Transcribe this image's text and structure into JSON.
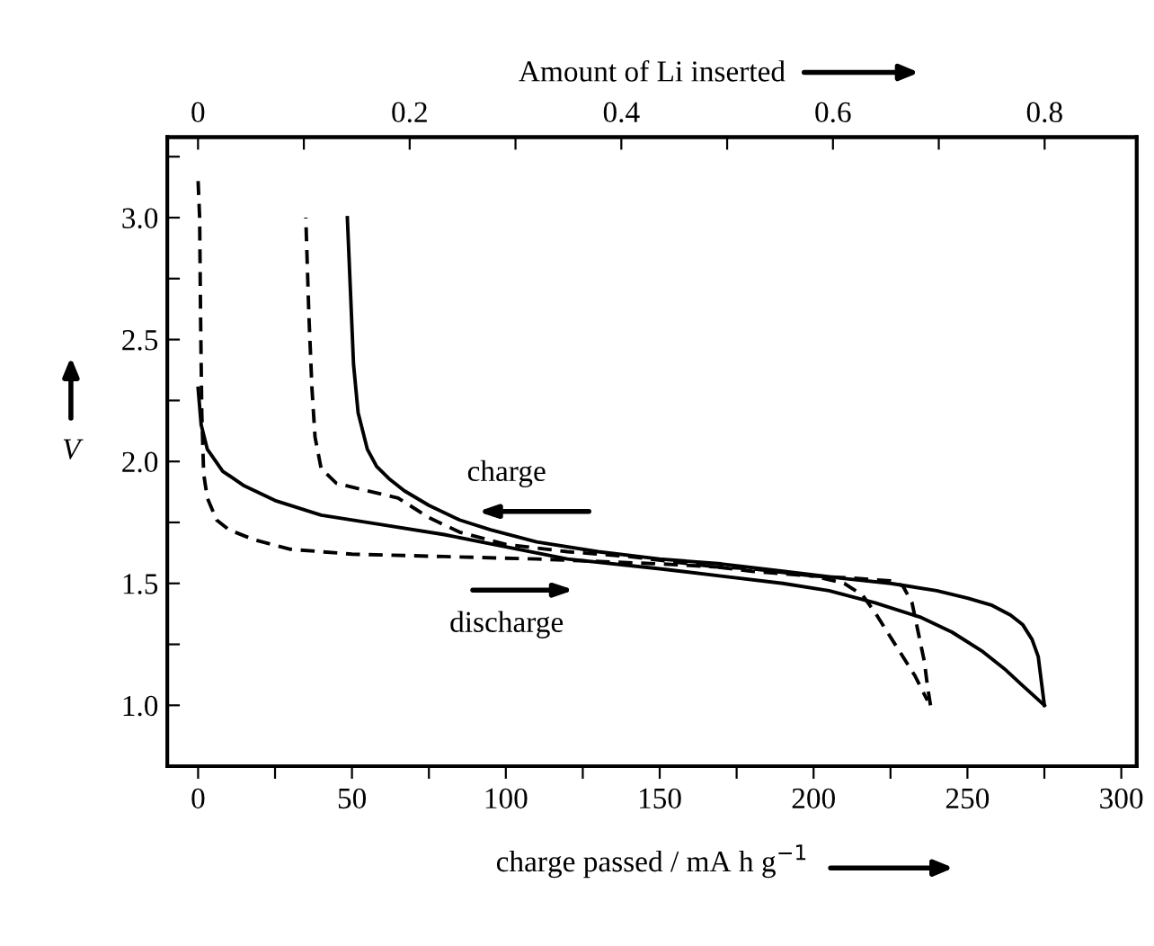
{
  "chart_data": {
    "type": "line",
    "xlabel": "charge passed / mA h g$^{−1}$",
    "ylabel": "V",
    "x2label": "Amount of Li inserted",
    "xlim": [
      -10,
      305
    ],
    "ylim": [
      0.75,
      3.33
    ],
    "x2lim": [
      -0.029,
      0.887
    ],
    "xticks": [
      0,
      {
        "value": 25,
        "label": null
      },
      50,
      {
        "value": 75,
        "label": null
      },
      100,
      {
        "value": 125,
        "label": null
      },
      150,
      {
        "value": 175,
        "label": null
      },
      200,
      {
        "value": 225,
        "label": null
      },
      250,
      {
        "value": 275,
        "label": null
      },
      300
    ],
    "yticks": [
      {
        "value": 0.75,
        "label": null
      },
      {
        "value": 1.0,
        "label": "1.0"
      },
      {
        "value": 1.25,
        "label": null
      },
      1.5,
      {
        "value": 1.75,
        "label": null
      },
      {
        "value": 2.0,
        "label": "2.0"
      },
      {
        "value": 2.25,
        "label": null
      },
      2.5,
      {
        "value": 2.75,
        "label": null
      },
      {
        "value": 3.0,
        "label": "3.0"
      },
      {
        "value": 3.25,
        "label": null
      }
    ],
    "x2ticks": [
      0,
      {
        "value": 0.1,
        "label": null
      },
      0.2,
      {
        "value": 0.3,
        "label": null
      },
      0.4,
      {
        "value": 0.5,
        "label": null
      },
      0.6,
      {
        "value": 0.7,
        "label": null
      },
      0.8
    ],
    "grid": false,
    "legend": false,
    "marker": "none",
    "annotations": [
      "charge",
      "discharge"
    ],
    "series": [
      {
        "color": "#000000",
        "line_style": "solid",
        "x": [
          0,
          1,
          3,
          8,
          15,
          25,
          40,
          60,
          80,
          100,
          120,
          150,
          170,
          190,
          205,
          220,
          235,
          245,
          255,
          262,
          268,
          275
        ],
        "values": [
          2.3,
          2.15,
          2.05,
          1.96,
          1.9,
          1.84,
          1.78,
          1.74,
          1.7,
          1.65,
          1.6,
          1.56,
          1.53,
          1.5,
          1.47,
          1.42,
          1.36,
          1.3,
          1.22,
          1.15,
          1.08,
          1.0
        ]
      },
      {
        "color": "#000000",
        "line_style": "solid",
        "x": [
          275,
          274,
          273,
          271,
          268,
          264,
          258,
          250,
          240,
          225,
          210,
          190,
          170,
          150,
          130,
          110,
          95,
          85,
          75,
          67,
          62,
          58,
          55,
          52,
          50.5,
          49.5,
          48.5
        ],
        "values": [
          1.0,
          1.1,
          1.2,
          1.27,
          1.33,
          1.37,
          1.41,
          1.44,
          1.47,
          1.5,
          1.52,
          1.55,
          1.58,
          1.6,
          1.63,
          1.67,
          1.72,
          1.76,
          1.82,
          1.88,
          1.93,
          1.98,
          2.05,
          2.2,
          2.4,
          2.7,
          3.0
        ]
      },
      {
        "color": "#000000",
        "line_style": "dashed",
        "x": [
          0,
          0.5,
          0.8,
          1.2,
          1.8,
          3,
          6,
          10,
          18,
          30,
          50,
          80,
          110,
          150,
          180,
          200,
          210,
          216,
          220,
          224,
          228,
          233,
          237
        ],
        "values": [
          3.15,
          3.0,
          2.6,
          2.2,
          1.95,
          1.85,
          1.76,
          1.72,
          1.68,
          1.64,
          1.62,
          1.61,
          1.6,
          1.58,
          1.56,
          1.53,
          1.5,
          1.45,
          1.38,
          1.3,
          1.22,
          1.12,
          1.02
        ]
      },
      {
        "color": "#000000",
        "line_style": "dashed",
        "x": [
          238,
          237,
          236,
          234,
          232,
          229,
          225,
          215,
          200,
          180,
          160,
          140,
          120,
          100,
          85,
          75,
          65,
          55,
          45,
          40,
          38,
          37,
          36,
          35
        ],
        "values": [
          1.0,
          1.08,
          1.18,
          1.3,
          1.42,
          1.49,
          1.51,
          1.52,
          1.53,
          1.55,
          1.58,
          1.61,
          1.63,
          1.66,
          1.71,
          1.77,
          1.85,
          1.88,
          1.91,
          1.97,
          2.1,
          2.3,
          2.6,
          3.0
        ]
      }
    ]
  }
}
